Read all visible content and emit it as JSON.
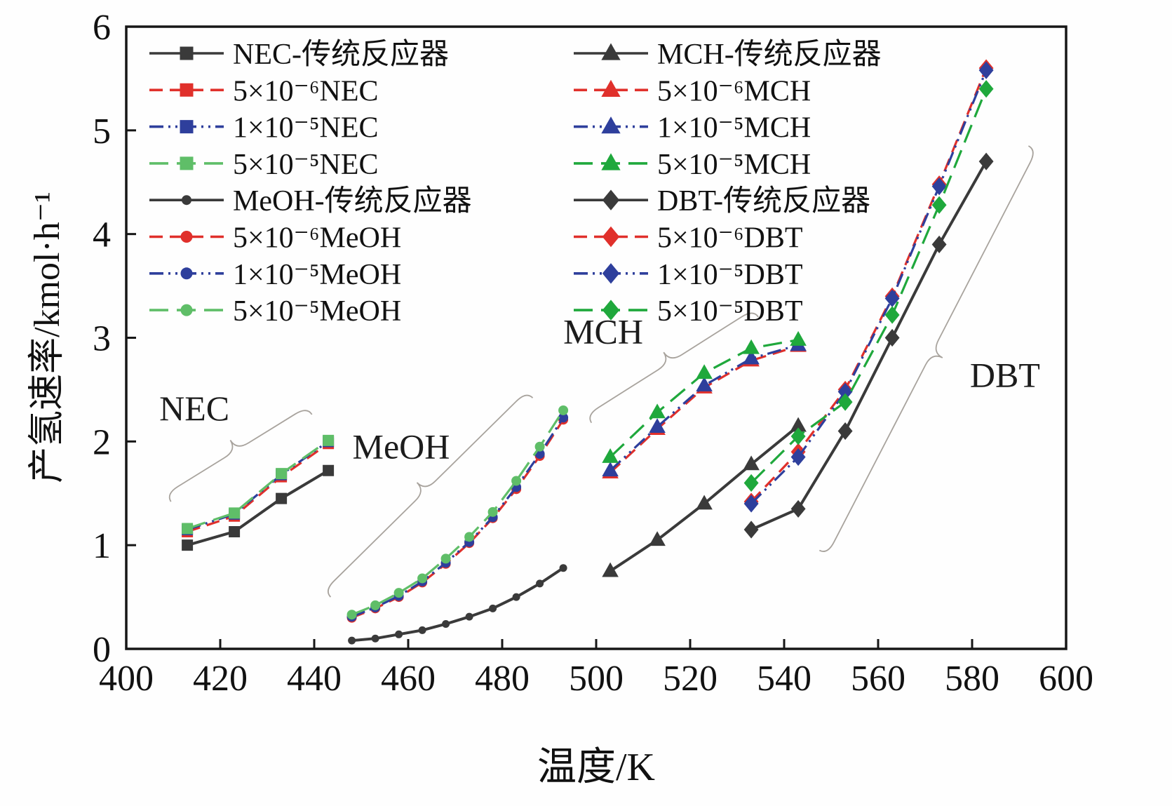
{
  "chart_data": {
    "type": "line",
    "xlabel": "温度/K",
    "ylabel": "产氢速率/kmol·h⁻¹",
    "xlim": [
      400,
      600
    ],
    "ylim": [
      0,
      6
    ],
    "xticks": [
      400,
      420,
      440,
      460,
      480,
      500,
      520,
      540,
      560,
      580,
      600
    ],
    "yticks": [
      0,
      1,
      2,
      3,
      4,
      5,
      6
    ],
    "grid": false,
    "legend_position": "inside-top, two columns",
    "colors": {
      "traditional": "#3a3a3a",
      "perm_5e-6": "#e0302b",
      "perm_1e-5": "#2e3f9c",
      "perm_5e-5_light": "#5fbe68",
      "perm_5e-5": "#1fa83c"
    },
    "series": [
      {
        "name": "NEC-传统反应器",
        "color": "#3a3a3a",
        "marker": "square",
        "line": "solid",
        "lw": 4,
        "x": [
          413,
          423,
          433,
          443
        ],
        "y": [
          1.0,
          1.13,
          1.45,
          1.72
        ]
      },
      {
        "name": "5×10⁻⁶NEC",
        "color": "#e0302b",
        "marker": "square",
        "line": "dash",
        "x": [
          413,
          423,
          433,
          443
        ],
        "y": [
          1.13,
          1.28,
          1.66,
          1.98
        ]
      },
      {
        "name": "1×10⁻⁵NEC",
        "color": "#2e3f9c",
        "marker": "square",
        "line": "dashdotdot",
        "x": [
          413,
          423,
          433,
          443
        ],
        "y": [
          1.15,
          1.3,
          1.68,
          2.0
        ]
      },
      {
        "name": "5×10⁻⁵NEC",
        "color": "#5fbe68",
        "marker": "square",
        "line": "longdash",
        "x": [
          413,
          423,
          433,
          443
        ],
        "y": [
          1.16,
          1.31,
          1.69,
          2.01
        ]
      },
      {
        "name": "MeOH-传统反应器",
        "color": "#3a3a3a",
        "marker": "circle",
        "line": "solid",
        "lw": 4,
        "msize": 11,
        "x": [
          448,
          453,
          458,
          463,
          468,
          473,
          478,
          483,
          488,
          493
        ],
        "y": [
          0.08,
          0.1,
          0.14,
          0.18,
          0.24,
          0.31,
          0.39,
          0.5,
          0.63,
          0.78
        ]
      },
      {
        "name": "5×10⁻⁶MeOH",
        "color": "#e0302b",
        "marker": "circle",
        "line": "dash",
        "x": [
          448,
          453,
          458,
          463,
          468,
          473,
          478,
          483,
          488,
          493
        ],
        "y": [
          0.3,
          0.39,
          0.5,
          0.64,
          0.82,
          1.02,
          1.26,
          1.54,
          1.86,
          2.21
        ]
      },
      {
        "name": "1×10⁻⁵MeOH",
        "color": "#2e3f9c",
        "marker": "circle",
        "line": "dashdotdot",
        "x": [
          448,
          453,
          458,
          463,
          468,
          473,
          478,
          483,
          488,
          493
        ],
        "y": [
          0.31,
          0.4,
          0.51,
          0.65,
          0.83,
          1.03,
          1.27,
          1.56,
          1.88,
          2.23
        ]
      },
      {
        "name": "5×10⁻⁵MeOH",
        "color": "#5fbe68",
        "marker": "circle",
        "line": "longdash",
        "x": [
          448,
          453,
          458,
          463,
          468,
          473,
          478,
          483,
          488,
          493
        ],
        "y": [
          0.33,
          0.42,
          0.54,
          0.68,
          0.87,
          1.08,
          1.32,
          1.62,
          1.95,
          2.3
        ]
      },
      {
        "name": "MCH-传统反应器",
        "color": "#3a3a3a",
        "marker": "triangle",
        "line": "solid",
        "lw": 4,
        "x": [
          503,
          513,
          523,
          533,
          543
        ],
        "y": [
          0.75,
          1.05,
          1.4,
          1.78,
          2.15
        ]
      },
      {
        "name": "5×10⁻⁶MCH",
        "color": "#e0302b",
        "marker": "triangle",
        "line": "dash",
        "x": [
          503,
          513,
          523,
          533,
          543
        ],
        "y": [
          1.7,
          2.12,
          2.52,
          2.78,
          2.92
        ]
      },
      {
        "name": "1×10⁻⁵MCH",
        "color": "#2e3f9c",
        "marker": "triangle",
        "line": "dashdotdot",
        "x": [
          503,
          513,
          523,
          533,
          543
        ],
        "y": [
          1.72,
          2.14,
          2.54,
          2.8,
          2.93
        ]
      },
      {
        "name": "5×10⁻⁵MCH",
        "color": "#1fa83c",
        "marker": "triangle",
        "line": "longdash",
        "x": [
          503,
          513,
          523,
          533,
          543
        ],
        "y": [
          1.85,
          2.28,
          2.66,
          2.9,
          2.98
        ]
      },
      {
        "name": "DBT-传统反应器",
        "color": "#3a3a3a",
        "marker": "diamond",
        "line": "solid",
        "lw": 4,
        "x": [
          533,
          543,
          553,
          563,
          573,
          583
        ],
        "y": [
          1.15,
          1.35,
          2.1,
          3.0,
          3.9,
          4.7
        ]
      },
      {
        "name": "5×10⁻⁶DBT",
        "color": "#e0302b",
        "marker": "diamond",
        "line": "dash",
        "x": [
          533,
          543,
          553,
          563,
          573,
          583
        ],
        "y": [
          1.42,
          1.9,
          2.5,
          3.4,
          4.48,
          5.6
        ]
      },
      {
        "name": "1×10⁻⁵DBT",
        "color": "#2e3f9c",
        "marker": "diamond",
        "line": "dashdotdot",
        "x": [
          533,
          543,
          553,
          563,
          573,
          583
        ],
        "y": [
          1.4,
          1.85,
          2.48,
          3.38,
          4.46,
          5.58
        ]
      },
      {
        "name": "5×10⁻⁵DBT",
        "color": "#1fa83c",
        "marker": "diamond",
        "line": "longdash",
        "x": [
          533,
          543,
          553,
          563,
          573,
          583
        ],
        "y": [
          1.6,
          2.05,
          2.38,
          3.22,
          4.28,
          5.4
        ]
      }
    ],
    "legend_columns": [
      [
        0,
        1,
        2,
        3,
        4,
        5,
        6,
        7
      ],
      [
        8,
        9,
        10,
        11,
        12,
        13,
        14,
        15
      ]
    ],
    "annotations": [
      {
        "text": "NEC",
        "x": 414.5,
        "y": 2.32
      },
      {
        "text": "MeOH",
        "x": 458.5,
        "y": 1.95
      },
      {
        "text": "MCH",
        "x": 501.5,
        "y": 3.06
      },
      {
        "text": "DBT",
        "x": 587,
        "y": 2.64
      }
    ],
    "braces": [
      {
        "x1": 409.5,
        "y1": 1.42,
        "x2": 439.5,
        "y2": 2.26,
        "side": 1
      },
      {
        "x1": 443.5,
        "y1": 0.5,
        "x2": 486.5,
        "y2": 2.42,
        "side": 1
      },
      {
        "x1": 499.0,
        "y1": 2.18,
        "x2": 534.5,
        "y2": 3.2,
        "side": 1
      },
      {
        "x1": 547.5,
        "y1": 0.95,
        "x2": 592.0,
        "y2": 4.85,
        "side": -1
      }
    ]
  }
}
